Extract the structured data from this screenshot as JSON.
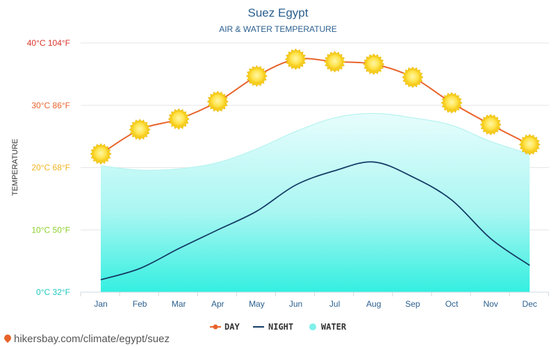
{
  "chart_data": {
    "type": "line",
    "title": "Suez Egypt",
    "subtitle": "AIR & WATER TEMPERATURE",
    "ylabel": "TEMPERATURE",
    "xlabel": "",
    "categories": [
      "Jan",
      "Feb",
      "Mar",
      "Apr",
      "May",
      "Jun",
      "Jul",
      "Aug",
      "Sep",
      "Oct",
      "Nov",
      "Dec"
    ],
    "ylim": [
      0,
      40
    ],
    "yticks": [
      {
        "value": 0,
        "label": "0°C 32°F",
        "color": "#1fc9c0"
      },
      {
        "value": 10,
        "label": "10°C 50°F",
        "color": "#8ccf2a"
      },
      {
        "value": 20,
        "label": "20°C 68°F",
        "color": "#f0b41e"
      },
      {
        "value": 30,
        "label": "30°C 86°F",
        "color": "#e8632a"
      },
      {
        "value": 40,
        "label": "40°C 104°F",
        "color": "#d9342b"
      }
    ],
    "series": [
      {
        "name": "DAY",
        "color": "#e8632a",
        "values": [
          22.2,
          26.1,
          27.8,
          30.6,
          34.7,
          37.4,
          37.0,
          36.6,
          34.5,
          30.4,
          26.9,
          23.7
        ]
      },
      {
        "name": "NIGHT",
        "color": "#143d66",
        "values": [
          2.0,
          3.8,
          7.0,
          10.0,
          13.0,
          17.2,
          19.5,
          20.9,
          18.5,
          14.8,
          8.6,
          4.3
        ]
      },
      {
        "name": "WATER",
        "color": "#7ff0ea",
        "values": [
          20.3,
          19.6,
          19.8,
          20.8,
          23.0,
          25.8,
          28.0,
          28.7,
          28.0,
          26.8,
          24.2,
          22.2
        ]
      }
    ],
    "legend": [
      {
        "label": "DAY",
        "color": "#e8632a",
        "shape": "line-dot"
      },
      {
        "label": "NIGHT",
        "color": "#143d66",
        "shape": "line"
      },
      {
        "label": "WATER",
        "color": "#7ff0ea",
        "shape": "dot"
      }
    ],
    "grid": true
  },
  "source_text": "hikersbay.com/climate/egypt/suez"
}
